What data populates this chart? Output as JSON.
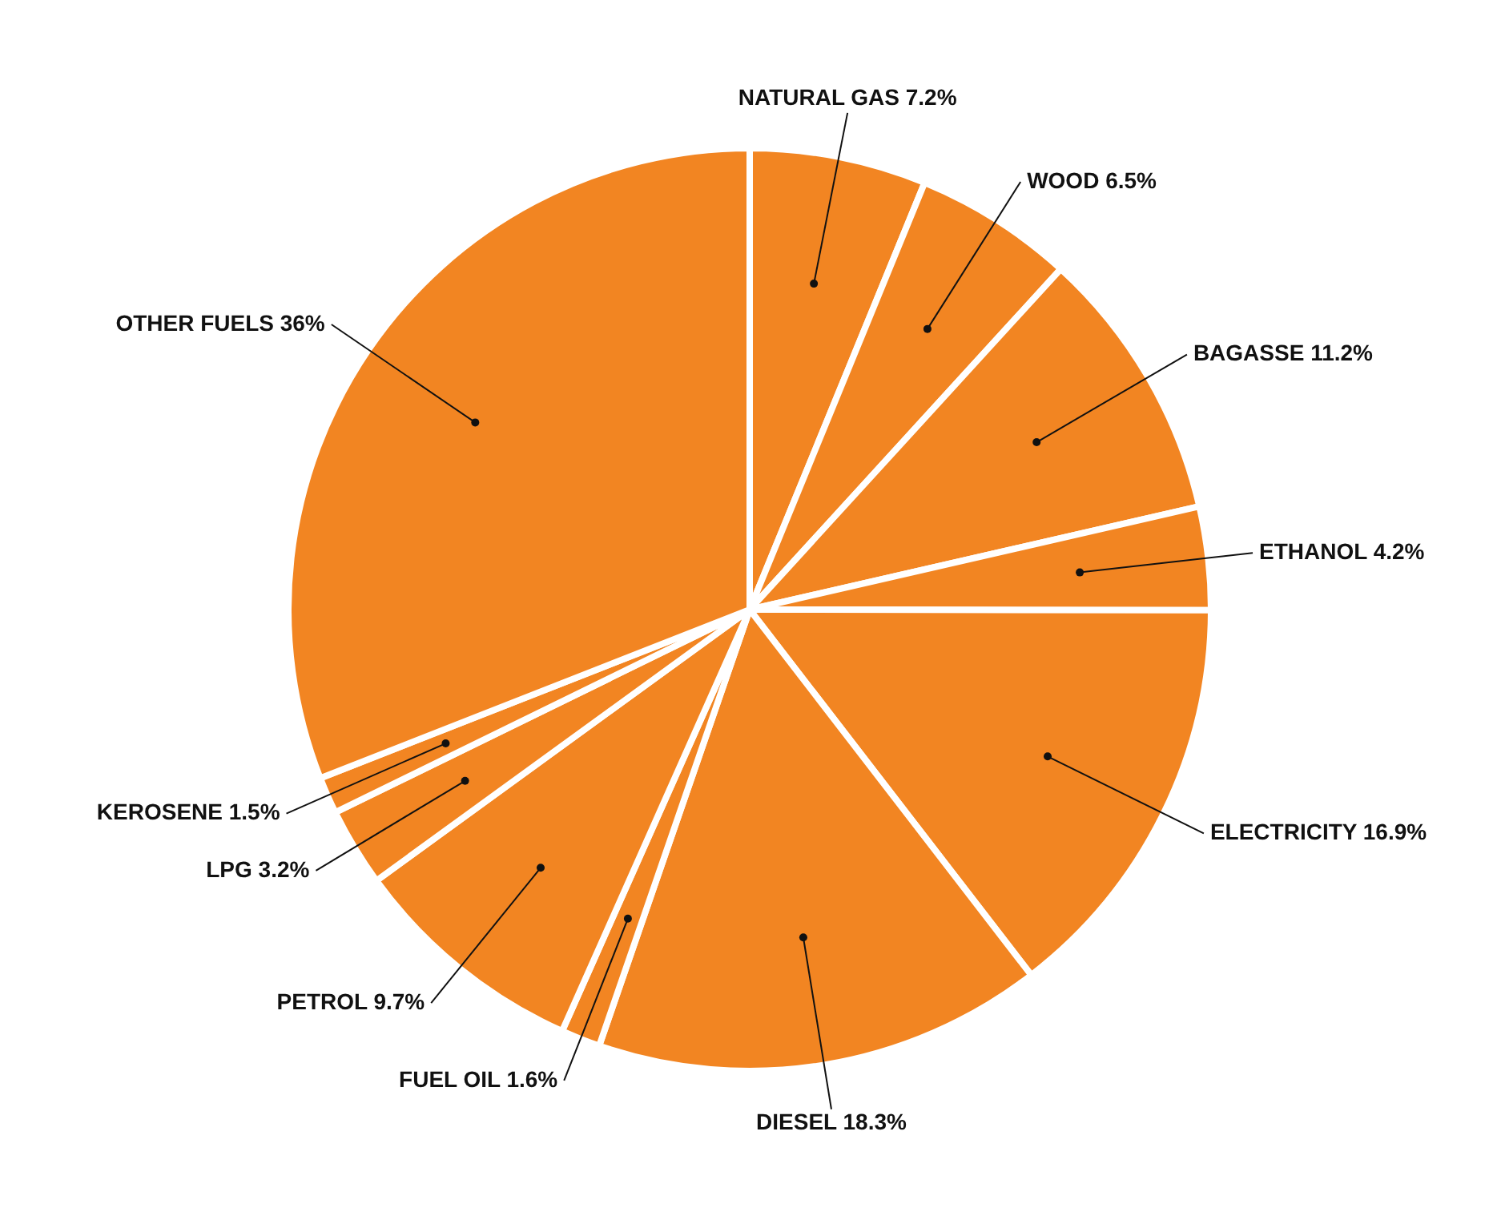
{
  "chart_data": {
    "type": "pie",
    "categories": [
      "NATURAL GAS",
      "WOOD",
      "BAGASSE",
      "ETHANOL",
      "ELECTRICITY",
      "DIESEL",
      "FUEL OIL",
      "PETROL",
      "LPG",
      "KEROSENE",
      "OTHER FUELS"
    ],
    "values": [
      7.2,
      6.5,
      11.2,
      4.2,
      16.9,
      18.3,
      1.6,
      9.7,
      3.2,
      1.5,
      36
    ],
    "value_labels": [
      "7.2%",
      "6.5%",
      "11.2%",
      "4.2%",
      "16.9%",
      "18.3%",
      "1.6%",
      "9.7%",
      "3.2%",
      "1.5%",
      "36%"
    ],
    "colors": [
      "#f28522",
      "#f28522",
      "#f28522",
      "#f28522",
      "#f28522",
      "#f28522",
      "#f28522",
      "#f28522",
      "#f28522",
      "#f28522",
      "#f28522"
    ],
    "legend": false
  }
}
